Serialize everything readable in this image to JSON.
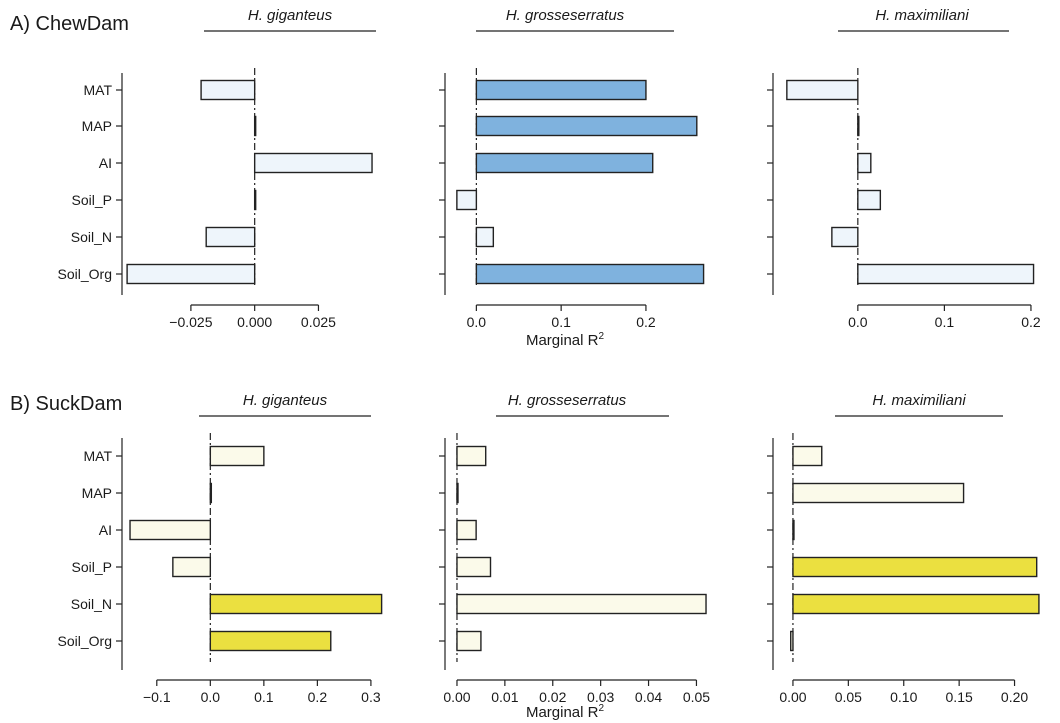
{
  "colors": {
    "chew_light": "#eef5fb",
    "chew_dark": "#7fb2de",
    "suck_light": "#fbfaea",
    "suck_dark": "#ebe040",
    "stroke": "#222222"
  },
  "axis_titles": {
    "chew_x": "Marginal R",
    "suck_x": "Marginal R",
    "superscript": "2"
  },
  "chart_data": [
    {
      "type": "bar",
      "orientation": "horizontal",
      "row": "A",
      "panel_label": "A) ChewDam",
      "subplot_title": "H. giganteus",
      "categories": [
        "MAT",
        "MAP",
        "AI",
        "Soil_P",
        "Soil_N",
        "Soil_Org"
      ],
      "values": [
        -0.021,
        0.0,
        0.046,
        0.0,
        -0.019,
        -0.05
      ],
      "highlight": [
        false,
        false,
        false,
        false,
        false,
        false
      ],
      "xlim": [
        -0.052,
        0.055
      ],
      "xticks": [
        -0.025,
        0.0,
        0.025
      ],
      "xtick_labels": [
        "−0.025",
        "0.000",
        "0.025"
      ],
      "show_category_labels": true,
      "xlabel": ""
    },
    {
      "type": "bar",
      "orientation": "horizontal",
      "row": "A",
      "subplot_title": "H. grosseserratus",
      "categories": [
        "MAT",
        "MAP",
        "AI",
        "Soil_P",
        "Soil_N",
        "Soil_Org"
      ],
      "values": [
        0.2,
        0.26,
        0.208,
        -0.023,
        0.02,
        0.268
      ],
      "highlight": [
        true,
        true,
        true,
        false,
        false,
        true
      ],
      "xlim": [
        -0.037,
        0.285
      ],
      "xticks": [
        0.0,
        0.1,
        0.2
      ],
      "xtick_labels": [
        "0.0",
        "0.1",
        "0.2"
      ],
      "show_category_labels": false,
      "xlabel": "Marginal R²"
    },
    {
      "type": "bar",
      "orientation": "horizontal",
      "row": "A",
      "subplot_title": "H. maximiliani",
      "categories": [
        "MAT",
        "MAP",
        "AI",
        "Soil_P",
        "Soil_N",
        "Soil_Org"
      ],
      "values": [
        -0.082,
        0.0,
        0.015,
        0.026,
        -0.03,
        0.203
      ],
      "highlight": [
        false,
        false,
        false,
        false,
        false,
        false
      ],
      "xlim": [
        -0.098,
        0.222
      ],
      "xticks": [
        0.0,
        0.1,
        0.2
      ],
      "xtick_labels": [
        "0.0",
        "0.1",
        "0.2"
      ],
      "show_category_labels": false,
      "xlabel": ""
    },
    {
      "type": "bar",
      "orientation": "horizontal",
      "row": "B",
      "panel_label": "B) SuckDam",
      "subplot_title": "H. giganteus",
      "categories": [
        "MAT",
        "MAP",
        "AI",
        "Soil_P",
        "Soil_N",
        "Soil_Org"
      ],
      "values": [
        0.1,
        0.0,
        -0.15,
        -0.07,
        0.32,
        0.225
      ],
      "highlight": [
        false,
        false,
        false,
        false,
        true,
        true
      ],
      "xlim": [
        -0.165,
        0.345
      ],
      "xticks": [
        -0.1,
        0.0,
        0.1,
        0.2,
        0.3
      ],
      "xtick_labels": [
        "−0.1",
        "0.0",
        "0.1",
        "0.2",
        "0.3"
      ],
      "show_category_labels": true,
      "xlabel": ""
    },
    {
      "type": "bar",
      "orientation": "horizontal",
      "row": "B",
      "subplot_title": "H. grosseserratus",
      "categories": [
        "MAT",
        "MAP",
        "AI",
        "Soil_P",
        "Soil_N",
        "Soil_Org"
      ],
      "values": [
        0.006,
        0.0,
        0.004,
        0.007,
        0.052,
        0.005
      ],
      "highlight": [
        false,
        false,
        false,
        false,
        false,
        false
      ],
      "xlim": [
        -0.0025,
        0.0545
      ],
      "xticks": [
        0.0,
        0.01,
        0.02,
        0.03,
        0.04,
        0.05
      ],
      "xtick_labels": [
        "0.00",
        "0.01",
        "0.02",
        "0.03",
        "0.04",
        "0.05"
      ],
      "show_category_labels": false,
      "xlabel": "Marginal R²"
    },
    {
      "type": "bar",
      "orientation": "horizontal",
      "row": "B",
      "subplot_title": "H. maximiliani",
      "categories": [
        "MAT",
        "MAP",
        "AI",
        "Soil_P",
        "Soil_N",
        "Soil_Org"
      ],
      "values": [
        0.026,
        0.154,
        0.0,
        0.22,
        0.222,
        -0.002
      ],
      "highlight": [
        false,
        false,
        false,
        true,
        true,
        false
      ],
      "xlim": [
        -0.018,
        0.232
      ],
      "xticks": [
        0.0,
        0.05,
        0.1,
        0.15,
        0.2
      ],
      "xtick_labels": [
        "0.00",
        "0.05",
        "0.10",
        "0.15",
        "0.20"
      ],
      "show_category_labels": false,
      "xlabel": ""
    }
  ]
}
